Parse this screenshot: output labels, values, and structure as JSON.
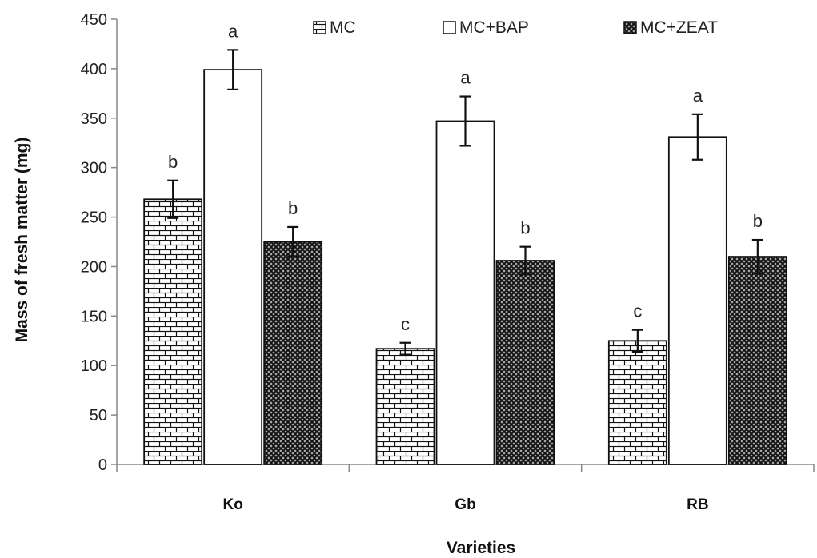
{
  "chart_data": {
    "type": "bar",
    "xlabel": "Varieties",
    "ylabel": "Mass of fresh matter (mg)",
    "ylim": [
      0,
      450
    ],
    "yticks": [
      0,
      50,
      100,
      150,
      200,
      250,
      300,
      350,
      400,
      450
    ],
    "categories": [
      "Ko",
      "Gb",
      "RB"
    ],
    "legend_position": "top",
    "grid": false,
    "series": [
      {
        "name": "MC",
        "pattern": "brick",
        "values": [
          268,
          117,
          125
        ],
        "errors": [
          19,
          6,
          11
        ],
        "labels": [
          "b",
          "c",
          "c"
        ]
      },
      {
        "name": "MC+BAP",
        "pattern": "white",
        "values": [
          399,
          347,
          331
        ],
        "errors": [
          20,
          25,
          23
        ],
        "labels": [
          "a",
          "a",
          "a"
        ]
      },
      {
        "name": "MC+ZEAT",
        "pattern": "crosshatch",
        "values": [
          225,
          206,
          210
        ],
        "errors": [
          15,
          14,
          17
        ],
        "labels": [
          "b",
          "b",
          "b"
        ]
      }
    ]
  }
}
